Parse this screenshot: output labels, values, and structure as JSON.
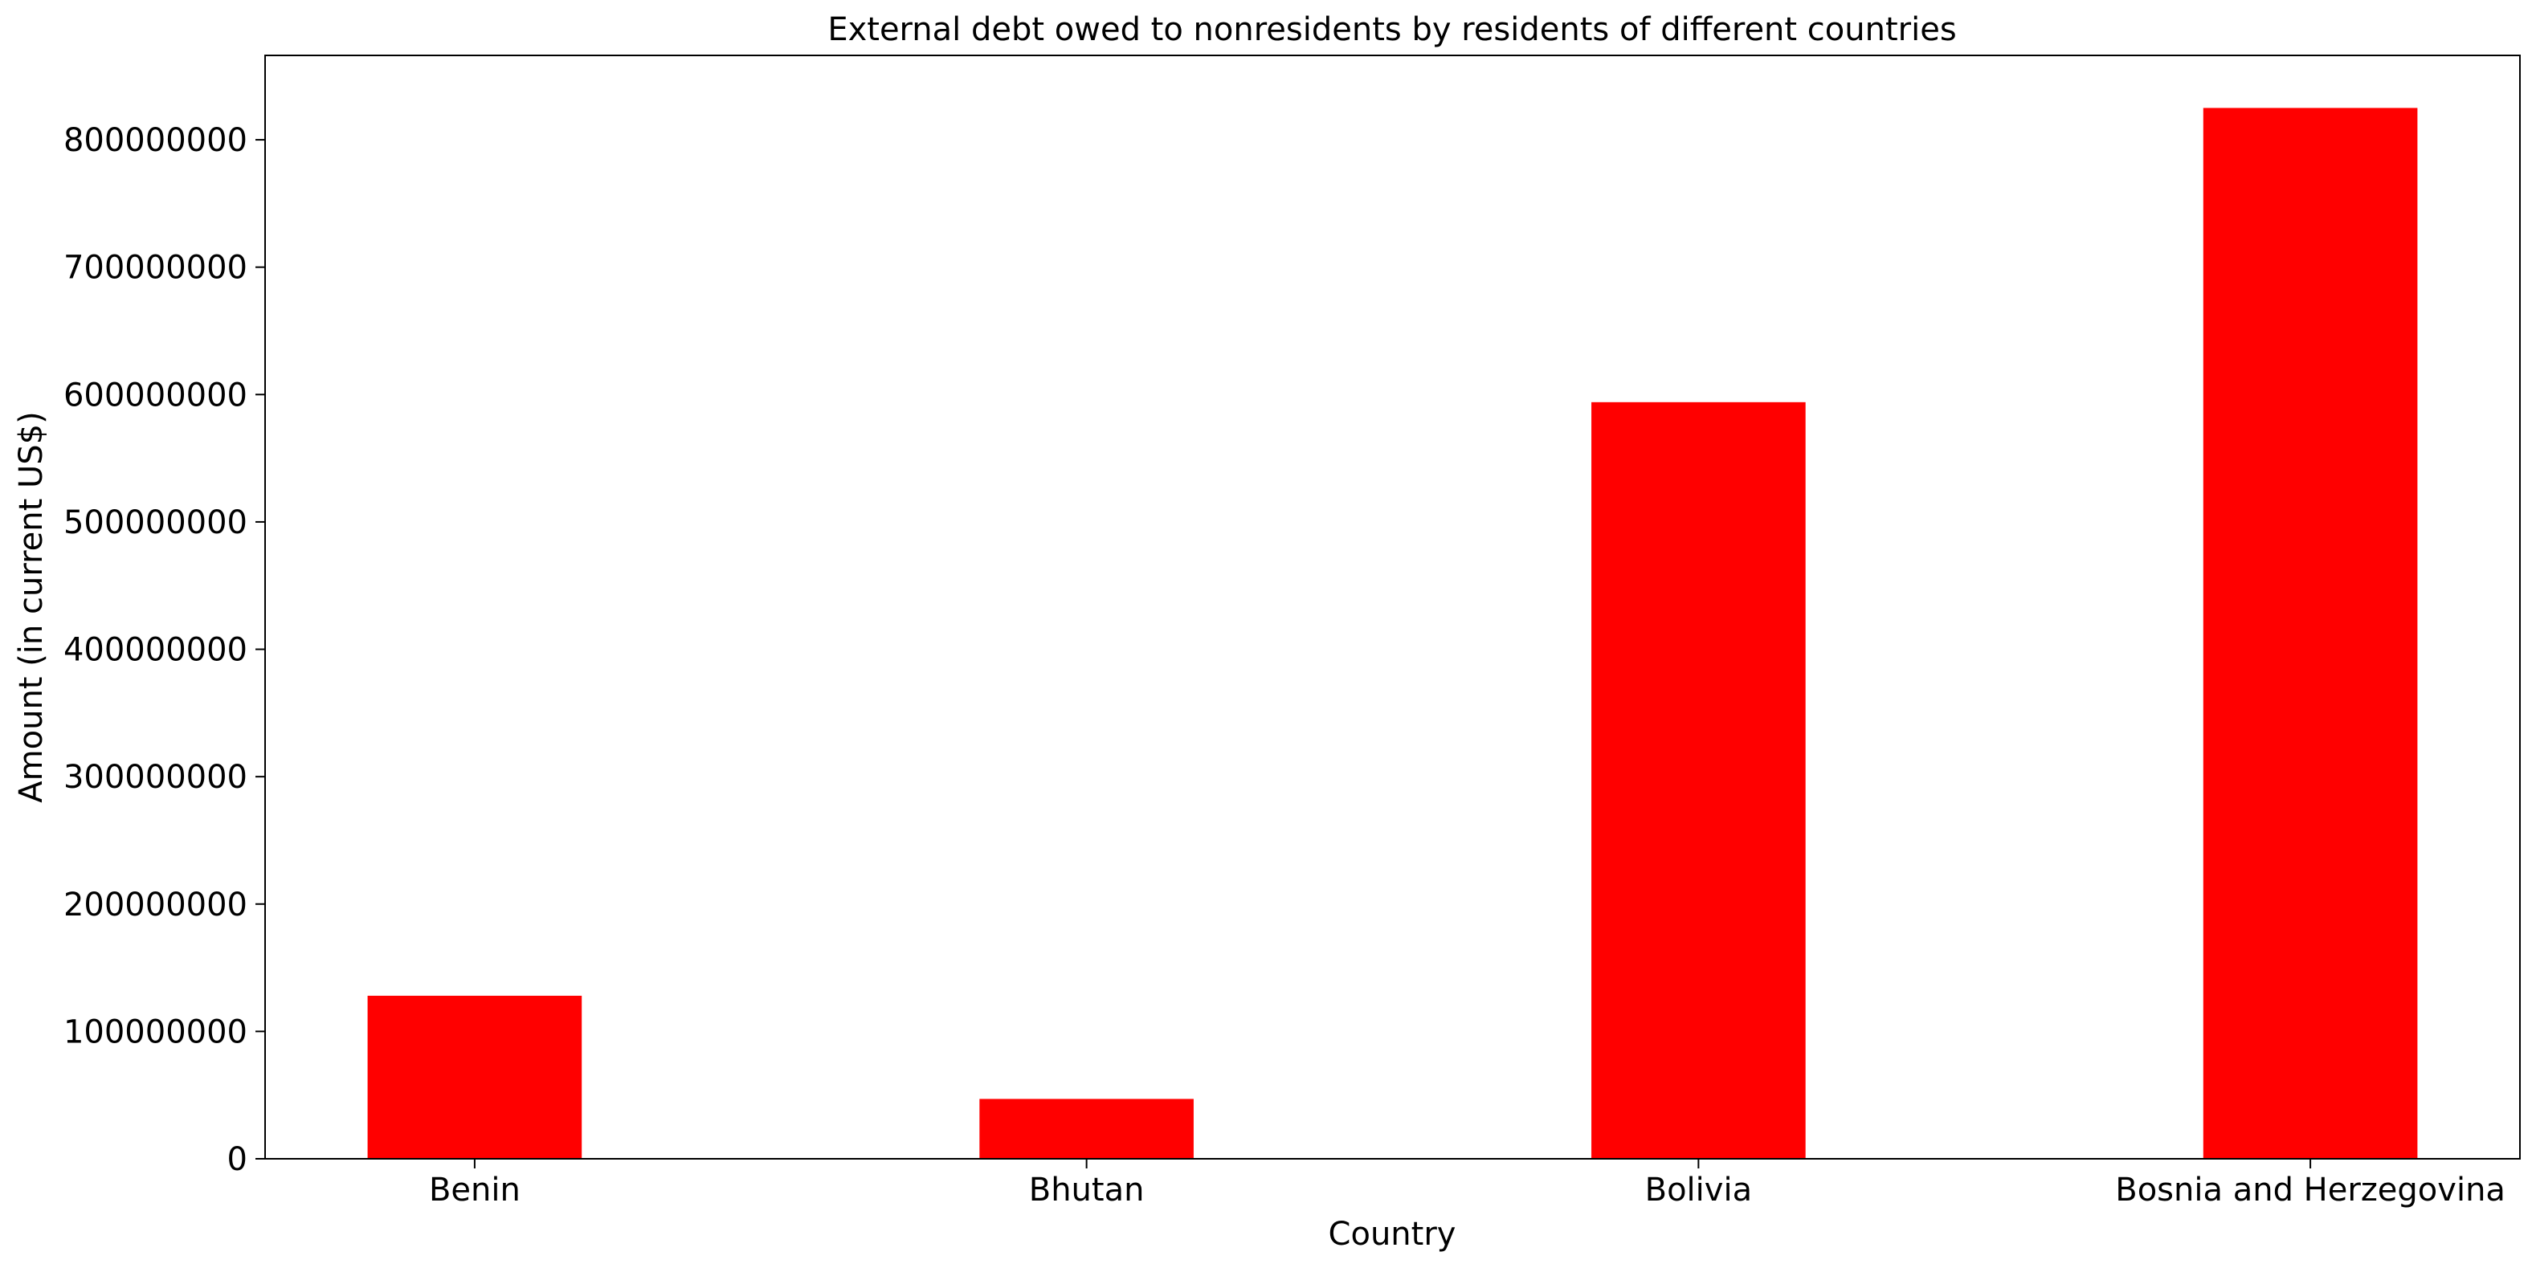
{
  "chart_data": {
    "type": "bar",
    "title": "External debt owed to nonresidents by residents of different countries",
    "xlabel": "Country",
    "ylabel": "Amount (in current US$)",
    "categories": [
      "Benin",
      "Bhutan",
      "Bolivia",
      "Bosnia and Herzegovina"
    ],
    "values": [
      128000000,
      47000000,
      594000000,
      825000000
    ],
    "ylim": [
      0,
      866250000
    ],
    "yticks": [
      0,
      100000000,
      200000000,
      300000000,
      400000000,
      500000000,
      600000000,
      700000000,
      800000000
    ],
    "ytick_labels": [
      "0",
      "100000000",
      "200000000",
      "300000000",
      "400000000",
      "500000000",
      "600000000",
      "700000000",
      "800000000"
    ],
    "bar_color": "#ff0000",
    "grid": false,
    "legend": "none"
  }
}
